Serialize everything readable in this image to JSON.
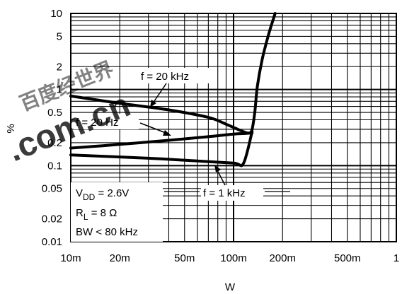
{
  "chart_data": {
    "type": "line",
    "title": "",
    "xlabel": "W",
    "ylabel": "%",
    "x_scale": "log",
    "y_scale": "log",
    "xlim": [
      0.01,
      1
    ],
    "ylim": [
      0.01,
      10
    ],
    "grid": true,
    "x_ticks": [
      {
        "value": 0.01,
        "label": "10m"
      },
      {
        "value": 0.02,
        "label": "20m"
      },
      {
        "value": 0.05,
        "label": "50m"
      },
      {
        "value": 0.1,
        "label": "100m"
      },
      {
        "value": 0.2,
        "label": "200m"
      },
      {
        "value": 0.5,
        "label": "500m"
      },
      {
        "value": 1,
        "label": "1"
      }
    ],
    "y_ticks": [
      {
        "value": 0.01,
        "label": "0.01"
      },
      {
        "value": 0.02,
        "label": "0.02"
      },
      {
        "value": 0.05,
        "label": "0.05"
      },
      {
        "value": 0.1,
        "label": "0.1"
      },
      {
        "value": 0.2,
        "label": "0.2"
      },
      {
        "value": 0.5,
        "label": "0.5"
      },
      {
        "value": 1,
        "label": "1"
      },
      {
        "value": 2,
        "label": "2"
      },
      {
        "value": 5,
        "label": "5"
      },
      {
        "value": 10,
        "label": "10"
      }
    ],
    "series": [
      {
        "name": "f = 20 kHz",
        "x": [
          0.01,
          0.02,
          0.04,
          0.07,
          0.09,
          0.11,
          0.12,
          0.126,
          0.13,
          0.135,
          0.14,
          0.15,
          0.165,
          0.18
        ],
        "y": [
          0.82,
          0.66,
          0.54,
          0.43,
          0.35,
          0.29,
          0.27,
          0.27,
          0.3,
          0.5,
          1.1,
          2.5,
          5.5,
          10
        ]
      },
      {
        "name": "f = 20 Hz",
        "x": [
          0.01,
          0.02,
          0.04,
          0.07,
          0.1,
          0.12,
          0.13
        ],
        "y": [
          0.17,
          0.19,
          0.215,
          0.24,
          0.26,
          0.265,
          0.27
        ]
      },
      {
        "name": "f = 1 kHz",
        "x": [
          0.01,
          0.03,
          0.06,
          0.1,
          0.115,
          0.13
        ],
        "y": [
          0.138,
          0.125,
          0.115,
          0.108,
          0.107,
          0.28
        ]
      }
    ],
    "annotations": {
      "conditions": [
        "V_DD = 2.6V",
        "R_L = 8 Ω",
        "BW < 80 kHz"
      ]
    }
  },
  "labels": {
    "curve_20khz": "f  =  20 kHz",
    "curve_20hz": "f  =  20 Hz",
    "curve_1khz": "f  =  1 kHz",
    "cond_vdd_main": "V",
    "cond_vdd_sub": "DD",
    "cond_vdd_value": " = 2.6V",
    "cond_rl_main": "R",
    "cond_rl_sub": "L",
    "cond_rl_value": " = 8 Ω",
    "cond_bw": "BW < 80 kHz"
  },
  "watermark": {
    "text_cn": "百度经世界",
    "text_com": ".com.cn",
    "color": "#e01010"
  },
  "colors": {
    "curve": "#000000",
    "grid": "#000000",
    "background": "#ffffff"
  }
}
